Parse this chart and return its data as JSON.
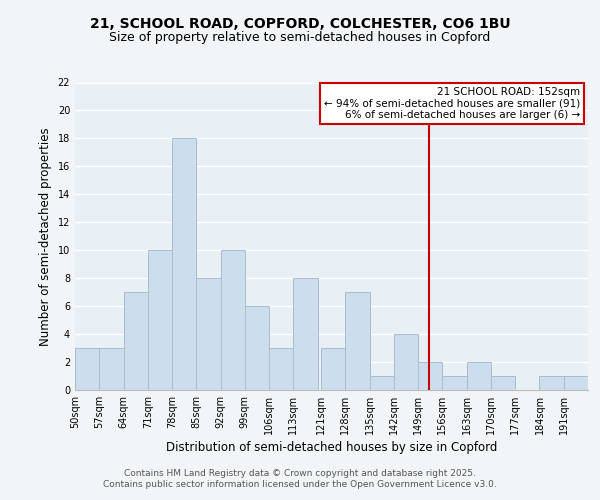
{
  "title_line1": "21, SCHOOL ROAD, COPFORD, COLCHESTER, CO6 1BU",
  "title_line2": "Size of property relative to semi-detached houses in Copford",
  "xlabel": "Distribution of semi-detached houses by size in Copford",
  "ylabel": "Number of semi-detached properties",
  "bin_labels": [
    "50sqm",
    "57sqm",
    "64sqm",
    "71sqm",
    "78sqm",
    "85sqm",
    "92sqm",
    "99sqm",
    "106sqm",
    "113sqm",
    "121sqm",
    "128sqm",
    "135sqm",
    "142sqm",
    "149sqm",
    "156sqm",
    "163sqm",
    "170sqm",
    "177sqm",
    "184sqm",
    "191sqm"
  ],
  "bin_edges": [
    50,
    57,
    64,
    71,
    78,
    85,
    92,
    99,
    106,
    113,
    121,
    128,
    135,
    142,
    149,
    156,
    163,
    170,
    177,
    184,
    191,
    198
  ],
  "counts": [
    3,
    3,
    7,
    10,
    18,
    8,
    10,
    6,
    3,
    8,
    3,
    7,
    1,
    4,
    2,
    1,
    2,
    1,
    0,
    1,
    1
  ],
  "bar_color": "#ccdded",
  "bar_edgecolor": "#aabbcc",
  "vline_x": 152,
  "vline_color": "#cc0000",
  "annotation_title": "21 SCHOOL ROAD: 152sqm",
  "annotation_line2": "← 94% of semi-detached houses are smaller (91)",
  "annotation_line3": "6% of semi-detached houses are larger (6) →",
  "annotation_box_edgecolor": "#cc0000",
  "annotation_box_facecolor": "#ffffff",
  "ylim": [
    0,
    22
  ],
  "yticks": [
    0,
    2,
    4,
    6,
    8,
    10,
    12,
    14,
    16,
    18,
    20,
    22
  ],
  "footer_line1": "Contains HM Land Registry data © Crown copyright and database right 2025.",
  "footer_line2": "Contains public sector information licensed under the Open Government Licence v3.0.",
  "bg_color": "#f2f5f8",
  "plot_bg_color": "#e8eff5",
  "grid_color": "#ffffff",
  "title_fontsize": 10,
  "subtitle_fontsize": 9,
  "axis_label_fontsize": 8.5,
  "tick_fontsize": 7,
  "annotation_fontsize": 7.5,
  "footer_fontsize": 6.5
}
